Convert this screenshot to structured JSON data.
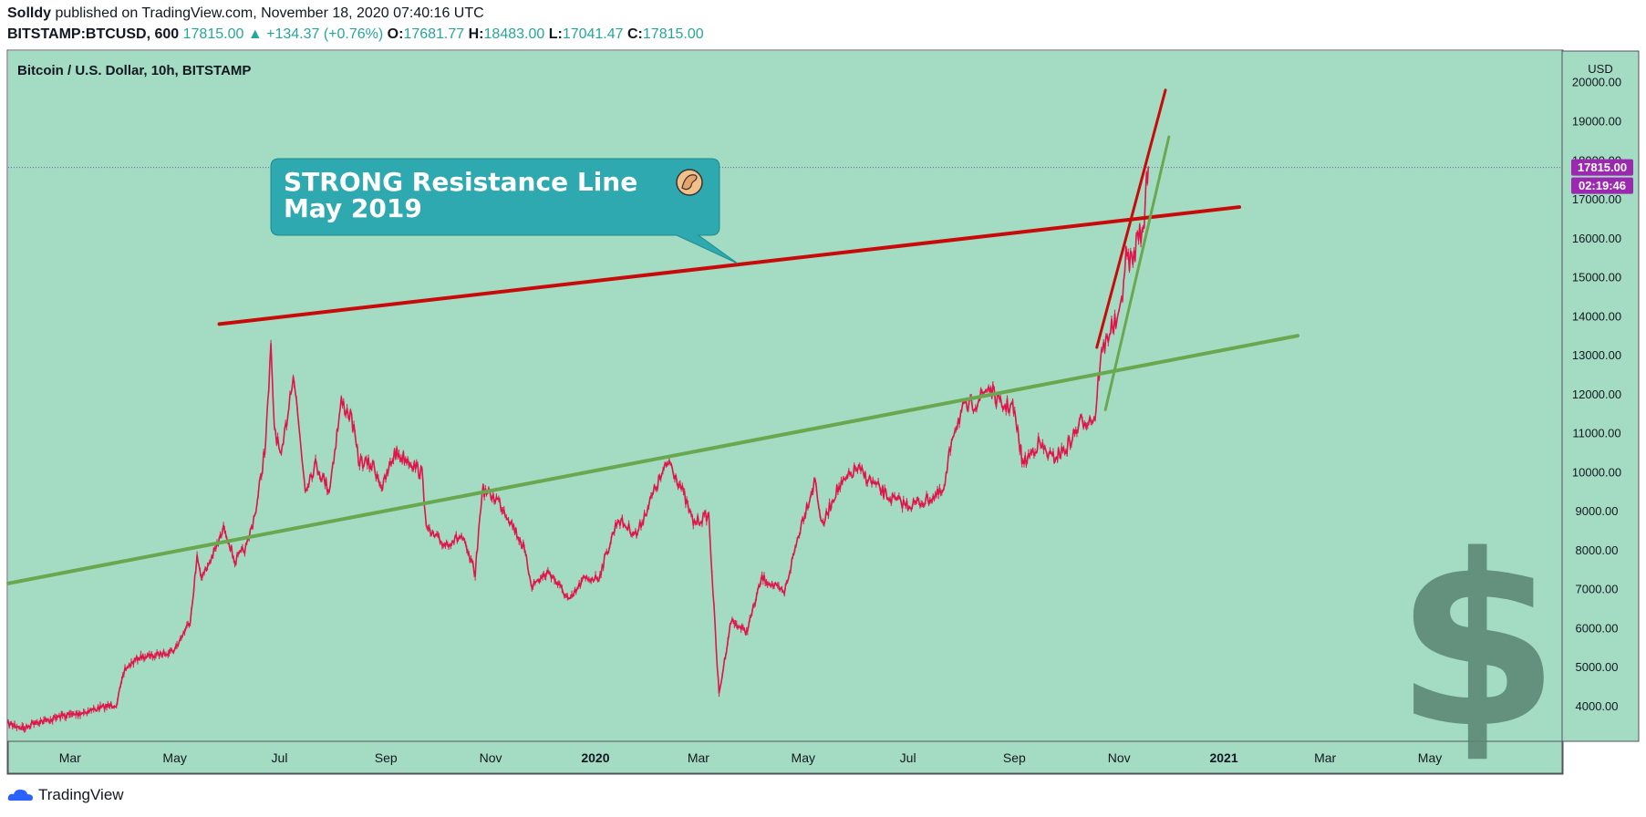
{
  "header": {
    "author": "Solldy",
    "published_text": "published on TradingView.com, November 18, 2020 07:40:16 UTC",
    "symbol": "BITSTAMP:BTCUSD, 600",
    "last": "17815.00",
    "change": "+134.37 (+0.76%)",
    "o_label": "O:",
    "o": "17681.77",
    "h_label": "H:",
    "h": "18483.00",
    "l_label": "L:",
    "l": "17041.47",
    "c_label": "C:",
    "c": "17815.00"
  },
  "colors": {
    "plot_bg": "#a3dcc2",
    "resistance": "#c80a0a",
    "support": "#6aa84f",
    "candle_down": "#e0144a",
    "callout_bg": "#2fa9b0",
    "price_label_bg": "#9c27b0"
  },
  "chart_data": {
    "type": "line",
    "title": "Bitcoin / U.S. Dollar, 10h, BITSTAMP",
    "currency": "USD",
    "ylim": [
      3100,
      20800
    ],
    "yticks": [
      4000,
      5000,
      6000,
      7000,
      8000,
      9000,
      10000,
      11000,
      12000,
      13000,
      14000,
      15000,
      16000,
      17000,
      18000,
      19000,
      20000
    ],
    "ytick_labels": [
      "4000.00",
      "5000.00",
      "6000.00",
      "7000.00",
      "8000.00",
      "9000.00",
      "10000.00",
      "11000.00",
      "12000.00",
      "13000.00",
      "14000.00",
      "15000.00",
      "16000.00",
      "17000.00",
      "18000.00",
      "19000.00",
      "20000.00"
    ],
    "xlim": [
      "2019-01-24",
      "2021-07-17"
    ],
    "xticks": [
      {
        "date": "2019-03-01",
        "label": "Mar",
        "bold": false
      },
      {
        "date": "2019-05-01",
        "label": "May",
        "bold": false
      },
      {
        "date": "2019-07-01",
        "label": "Jul",
        "bold": false
      },
      {
        "date": "2019-09-01",
        "label": "Sep",
        "bold": false
      },
      {
        "date": "2019-11-01",
        "label": "Nov",
        "bold": false
      },
      {
        "date": "2020-01-01",
        "label": "2020",
        "bold": true
      },
      {
        "date": "2020-03-01",
        "label": "Mar",
        "bold": false
      },
      {
        "date": "2020-05-01",
        "label": "May",
        "bold": false
      },
      {
        "date": "2020-07-01",
        "label": "Jul",
        "bold": false
      },
      {
        "date": "2020-09-01",
        "label": "Sep",
        "bold": false
      },
      {
        "date": "2020-11-01",
        "label": "Nov",
        "bold": false
      },
      {
        "date": "2021-01-01",
        "label": "2021",
        "bold": true
      },
      {
        "date": "2021-03-01",
        "label": "Mar",
        "bold": false
      },
      {
        "date": "2021-05-01",
        "label": "May",
        "bold": false
      }
    ],
    "price": [
      [
        "2019-01-24",
        3550
      ],
      [
        "2019-02-03",
        3430
      ],
      [
        "2019-02-08",
        3600
      ],
      [
        "2019-02-15",
        3620
      ],
      [
        "2019-02-24",
        3750
      ],
      [
        "2019-03-05",
        3800
      ],
      [
        "2019-03-18",
        3950
      ],
      [
        "2019-03-28",
        4050
      ],
      [
        "2019-04-02",
        4950
      ],
      [
        "2019-04-10",
        5250
      ],
      [
        "2019-04-20",
        5300
      ],
      [
        "2019-05-01",
        5450
      ],
      [
        "2019-05-10",
        6200
      ],
      [
        "2019-05-14",
        7800
      ],
      [
        "2019-05-17",
        7300
      ],
      [
        "2019-05-25",
        8050
      ],
      [
        "2019-05-30",
        8600
      ],
      [
        "2019-06-05",
        7700
      ],
      [
        "2019-06-12",
        8100
      ],
      [
        "2019-06-18",
        9200
      ],
      [
        "2019-06-23",
        10800
      ],
      [
        "2019-06-26",
        13100
      ],
      [
        "2019-06-28",
        11200
      ],
      [
        "2019-07-02",
        10300
      ],
      [
        "2019-07-09",
        12600
      ],
      [
        "2019-07-16",
        9600
      ],
      [
        "2019-07-22",
        10200
      ],
      [
        "2019-07-30",
        9550
      ],
      [
        "2019-08-06",
        11800
      ],
      [
        "2019-08-12",
        11400
      ],
      [
        "2019-08-16",
        10300
      ],
      [
        "2019-08-25",
        10150
      ],
      [
        "2019-08-30",
        9600
      ],
      [
        "2019-09-06",
        10500
      ],
      [
        "2019-09-15",
        10300
      ],
      [
        "2019-09-22",
        9950
      ],
      [
        "2019-09-25",
        8500
      ],
      [
        "2019-10-05",
        8150
      ],
      [
        "2019-10-15",
        8350
      ],
      [
        "2019-10-23",
        7400
      ],
      [
        "2019-10-27",
        9550
      ],
      [
        "2019-11-05",
        9300
      ],
      [
        "2019-11-12",
        8800
      ],
      [
        "2019-11-20",
        8100
      ],
      [
        "2019-11-25",
        7100
      ],
      [
        "2019-12-05",
        7450
      ],
      [
        "2019-12-17",
        6700
      ],
      [
        "2019-12-25",
        7250
      ],
      [
        "2020-01-03",
        7300
      ],
      [
        "2020-01-14",
        8800
      ],
      [
        "2020-01-25",
        8400
      ],
      [
        "2020-02-05",
        9600
      ],
      [
        "2020-02-13",
        10300
      ],
      [
        "2020-02-20",
        9600
      ],
      [
        "2020-02-27",
        8700
      ],
      [
        "2020-03-07",
        8900
      ],
      [
        "2020-03-12",
        5000
      ],
      [
        "2020-03-13",
        4300
      ],
      [
        "2020-03-20",
        6200
      ],
      [
        "2020-03-29",
        5900
      ],
      [
        "2020-04-07",
        7300
      ],
      [
        "2020-04-20",
        6900
      ],
      [
        "2020-04-30",
        8700
      ],
      [
        "2020-05-08",
        9800
      ],
      [
        "2020-05-12",
        8600
      ],
      [
        "2020-05-20",
        9500
      ],
      [
        "2020-06-01",
        10100
      ],
      [
        "2020-06-10",
        9750
      ],
      [
        "2020-06-20",
        9350
      ],
      [
        "2020-07-01",
        9150
      ],
      [
        "2020-07-10",
        9250
      ],
      [
        "2020-07-22",
        9500
      ],
      [
        "2020-07-27",
        11000
      ],
      [
        "2020-08-02",
        11600
      ],
      [
        "2020-08-10",
        11800
      ],
      [
        "2020-08-17",
        12200
      ],
      [
        "2020-08-24",
        11700
      ],
      [
        "2020-08-31",
        11700
      ],
      [
        "2020-09-03",
        11000
      ],
      [
        "2020-09-06",
        10200
      ],
      [
        "2020-09-15",
        10750
      ],
      [
        "2020-09-23",
        10350
      ],
      [
        "2020-10-01",
        10600
      ],
      [
        "2020-10-10",
        11300
      ],
      [
        "2020-10-18",
        11400
      ],
      [
        "2020-10-21",
        12900
      ],
      [
        "2020-10-27",
        13700
      ],
      [
        "2020-11-01",
        13900
      ],
      [
        "2020-11-05",
        15500
      ],
      [
        "2020-11-09",
        15400
      ],
      [
        "2020-11-13",
        16300
      ],
      [
        "2020-11-15",
        15950
      ],
      [
        "2020-11-17",
        17600
      ],
      [
        "2020-11-18",
        17815
      ]
    ],
    "resistance_line": [
      [
        "2019-05-27",
        13800
      ],
      [
        "2021-01-10",
        16800
      ]
    ],
    "support_line": [
      [
        "2019-01-24",
        7150
      ],
      [
        "2021-02-13",
        13500
      ]
    ],
    "channel_upper": [
      [
        "2020-10-19",
        13200
      ],
      [
        "2020-11-28",
        19800
      ]
    ],
    "channel_lower": [
      [
        "2020-10-24",
        11600
      ],
      [
        "2020-11-30",
        18600
      ]
    ],
    "last_price_label": "17815.00",
    "countdown_label": "02:19:46",
    "annotation": {
      "line1": "STRONG Resistance Line",
      "line2": "May 2019"
    }
  },
  "footer": {
    "brand": "TradingView"
  }
}
